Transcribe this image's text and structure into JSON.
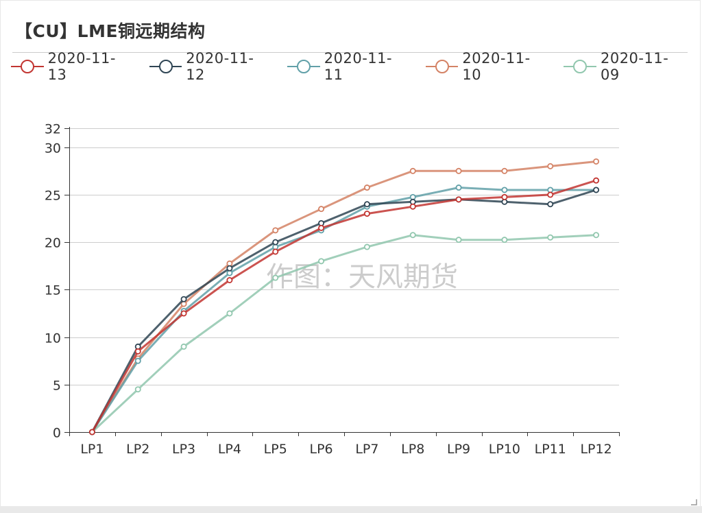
{
  "title": "【CU】LME铜远期结构",
  "watermark": "作图：天风期货",
  "chart_data": {
    "type": "line",
    "title": "【CU】LME铜远期结构",
    "categories": [
      "LP1",
      "LP2",
      "LP3",
      "LP4",
      "LP5",
      "LP6",
      "LP7",
      "LP8",
      "LP9",
      "LP10",
      "LP11",
      "LP12"
    ],
    "ylim": [
      0,
      32
    ],
    "yticks": [
      0,
      5,
      10,
      15,
      20,
      25,
      30,
      32
    ],
    "grid": true,
    "legend_position": "top-left",
    "series": [
      {
        "name": "2020-11-13",
        "color": "#c23531",
        "values": [
          0,
          8.5,
          12.5,
          16,
          19,
          21.5,
          23,
          23.75,
          24.5,
          24.75,
          25,
          26.5
        ]
      },
      {
        "name": "2020-11-12",
        "color": "#2f4554",
        "values": [
          0,
          9,
          14,
          17.25,
          20,
          22,
          24,
          24.25,
          24.5,
          24.25,
          24,
          25.5
        ]
      },
      {
        "name": "2020-11-11",
        "color": "#61a0a8",
        "values": [
          0,
          7.5,
          12.75,
          16.75,
          19.5,
          21.25,
          23.75,
          24.75,
          25.75,
          25.5,
          25.5,
          25.5
        ]
      },
      {
        "name": "2020-11-10",
        "color": "#d48265",
        "values": [
          0,
          7.75,
          13.5,
          17.75,
          21.25,
          23.5,
          25.75,
          27.5,
          27.5,
          27.5,
          28,
          28.5
        ]
      },
      {
        "name": "2020-11-09",
        "color": "#91c7ae",
        "values": [
          0,
          4.5,
          9,
          12.5,
          16.25,
          18,
          19.5,
          20.75,
          20.25,
          20.25,
          20.5,
          20.75
        ]
      }
    ]
  }
}
